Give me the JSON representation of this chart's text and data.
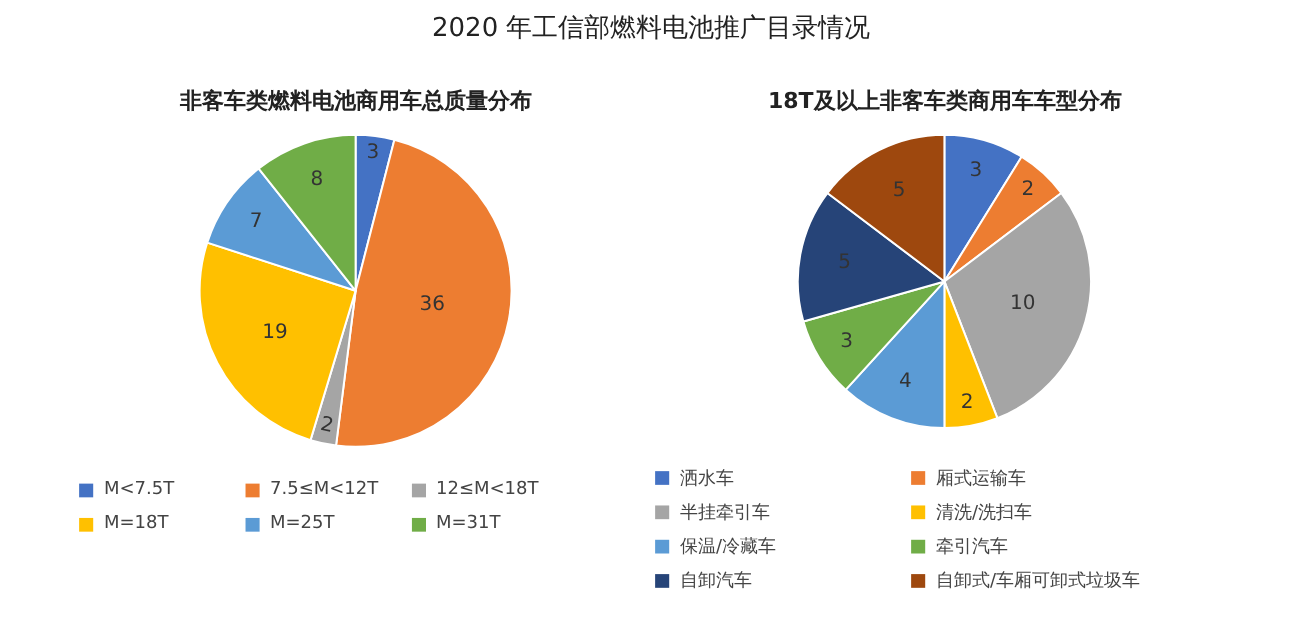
{
  "chart_data": [
    {
      "type": "pie",
      "title": "非客车类燃料电池商用车总质量分布",
      "annotations": [
        "2020 年工信部燃料电池推广目录情况"
      ],
      "categories": [
        "M<7.5T",
        "7.5≤M<12T",
        "12≤M<18T",
        "M=18T",
        "M=25T",
        "M=31T"
      ],
      "values": [
        3,
        36,
        2,
        19,
        7,
        8
      ],
      "colors": [
        "#4472c4",
        "#ed7d31",
        "#a5a5a5",
        "#ffc000",
        "#5b9bd5",
        "#70ad47"
      ],
      "data_labels": true,
      "legend": "bottom"
    },
    {
      "type": "pie",
      "title": "18T及以上非客车类商用车车型分布",
      "categories": [
        "洒水车",
        "厢式运输车",
        "半挂牵引车",
        "清洗/洗扫车",
        "保温/冷藏车",
        "牵引汽车",
        "自卸汽车",
        "自卸式/车厢可卸式垃圾车"
      ],
      "values": [
        3,
        2,
        10,
        2,
        4,
        3,
        5,
        5
      ],
      "colors": [
        "#4472c4",
        "#ed7d31",
        "#a5a5a5",
        "#ffc000",
        "#5b9bd5",
        "#70ad47",
        "#264478",
        "#9e480e"
      ],
      "data_labels": true,
      "legend": "bottom"
    }
  ]
}
